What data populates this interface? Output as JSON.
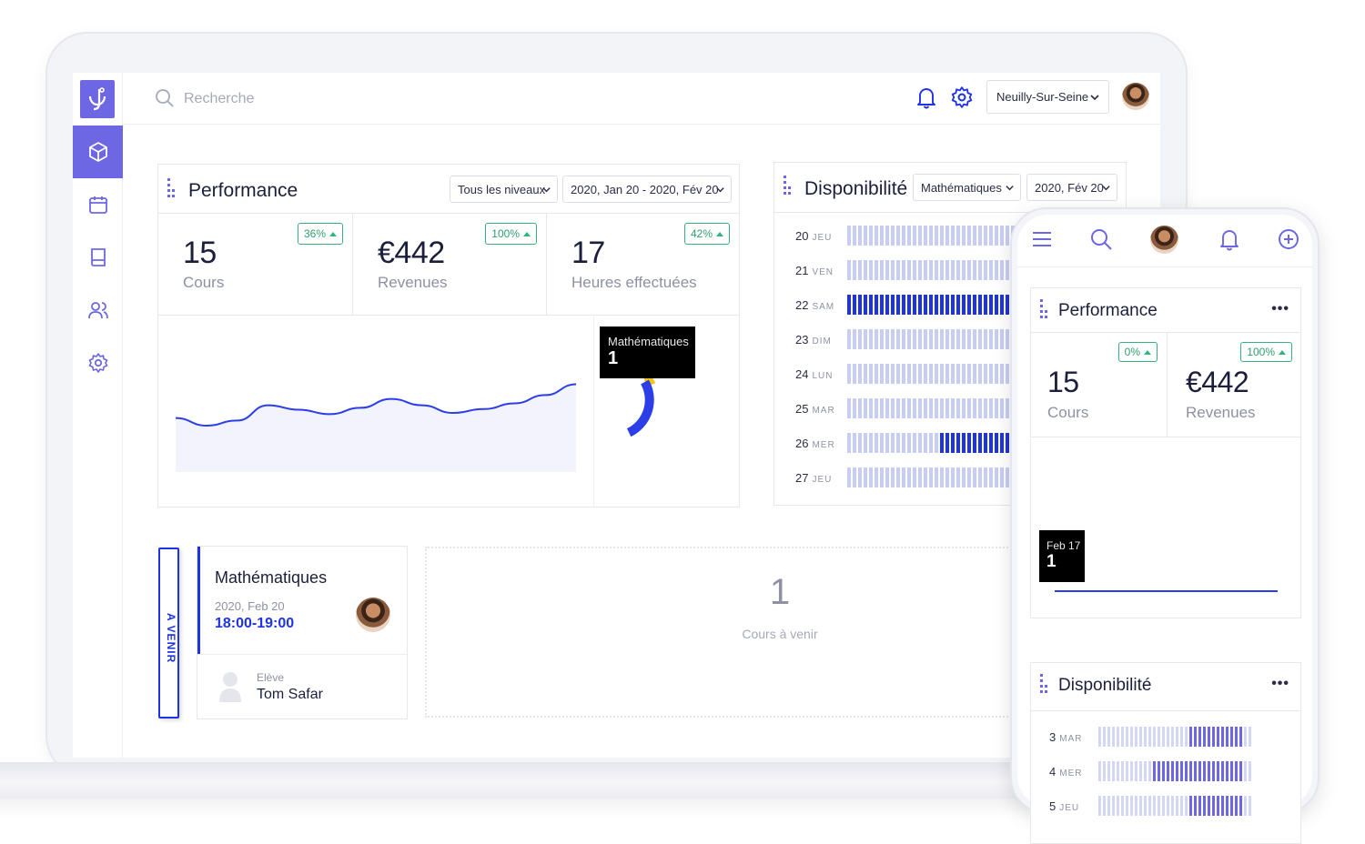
{
  "brand": {
    "accent": "#6d67e4",
    "blue": "#1e33e6",
    "green": "#35b37e"
  },
  "header": {
    "search_placeholder": "Recherche",
    "location": "Neuilly-Sur-Seine",
    "icons": [
      "search-icon",
      "bell-icon",
      "gear-icon",
      "chevron-down-icon"
    ]
  },
  "sidebar": {
    "items": [
      {
        "icon": "box-icon",
        "active": true
      },
      {
        "icon": "calendar-icon",
        "active": false
      },
      {
        "icon": "book-icon",
        "active": false
      },
      {
        "icon": "users-icon",
        "active": false
      },
      {
        "icon": "gear-icon",
        "active": false
      }
    ]
  },
  "performance": {
    "title": "Performance",
    "level_filter": "Tous les niveaux",
    "date_filter": "2020, Jan 20 - 2020, Fév 20",
    "kpis": [
      {
        "value": "15",
        "label": "Cours",
        "badge": "36%"
      },
      {
        "value": "€442",
        "label": "Revenues",
        "badge": "100%"
      },
      {
        "value": "17",
        "label": "Heures effectuées",
        "badge": "42%"
      }
    ],
    "tooltip": {
      "label": "Mathématiques",
      "value": "1"
    },
    "line_series": [
      0.42,
      0.3,
      0.38,
      0.62,
      0.55,
      0.48,
      0.58,
      0.72,
      0.62,
      0.5,
      0.56,
      0.65,
      0.78,
      0.95
    ],
    "donut": {
      "yellow_fraction": 0.04,
      "blue_fraction": 0.26
    }
  },
  "availability": {
    "title": "Disponibilité",
    "subject_filter": "Mathématiques",
    "date_filter": "2020, Fév 20",
    "rows": [
      {
        "day": "20",
        "weekday": "JEU",
        "booked_from": 33
      },
      {
        "day": "21",
        "weekday": "VEN",
        "booked_from": 33
      },
      {
        "day": "22",
        "weekday": "SAM",
        "booked_from": 0
      },
      {
        "day": "23",
        "weekday": "DIM",
        "booked_from": 36
      },
      {
        "day": "24",
        "weekday": "LUN",
        "booked_from": 33
      },
      {
        "day": "25",
        "weekday": "MAR",
        "booked_from": 33
      },
      {
        "day": "26",
        "weekday": "MER",
        "booked_from": 17
      },
      {
        "day": "27",
        "weekday": "JEU",
        "booked_from": 33
      }
    ]
  },
  "upcoming": {
    "tab_label": "A VENIR",
    "subject": "Mathématiques",
    "date": "2020, Feb 20",
    "time": "18:00-19:00",
    "student_label": "Elève",
    "student_name": "Tom Safar",
    "count": "1",
    "count_label": "Cours à venir"
  },
  "mobile": {
    "performance_title": "Performance",
    "kpis": [
      {
        "value": "15",
        "label": "Cours",
        "badge": "0%"
      },
      {
        "value": "€442",
        "label": "Revenues",
        "badge": "100%"
      }
    ],
    "tooltip": {
      "label": "Feb 17",
      "value": "1"
    },
    "availability_title": "Disponibilité",
    "more": "•••",
    "rows": [
      {
        "day": "3",
        "weekday": "MAR",
        "booked_from": 20,
        "booked_to": 31
      },
      {
        "day": "4",
        "weekday": "MER",
        "booked_from": 12,
        "booked_to": 31
      },
      {
        "day": "5",
        "weekday": "JEU",
        "booked_from": 20,
        "booked_to": 31
      }
    ]
  }
}
